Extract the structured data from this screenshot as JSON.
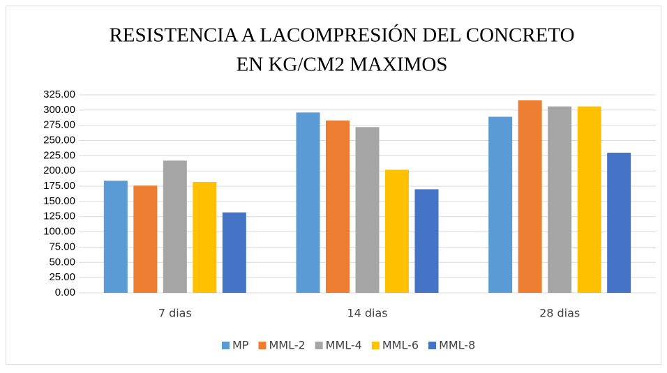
{
  "chart_data": {
    "type": "bar",
    "title": [
      "RESISTENCIA A LACOMPRESIÓN DEL CONCRETO",
      "EN KG/CM2 MAXIMOS"
    ],
    "categories": [
      "7 dias",
      "14 dias",
      "28 dias"
    ],
    "series": [
      {
        "name": "MP",
        "color": "#5b9bd5",
        "values": [
          184,
          296,
          289
        ]
      },
      {
        "name": "MML-2",
        "color": "#ed7d31",
        "values": [
          176,
          283,
          316
        ]
      },
      {
        "name": "MML-4",
        "color": "#a5a5a5",
        "values": [
          217,
          272,
          306
        ]
      },
      {
        "name": "MML-6",
        "color": "#ffc000",
        "values": [
          182,
          202,
          306
        ]
      },
      {
        "name": "MML-8",
        "color": "#4472c4",
        "values": [
          132,
          170,
          230
        ]
      }
    ],
    "ylim": [
      0,
      325
    ],
    "yticks": [
      {
        "value": 0,
        "label": "0.00"
      },
      {
        "value": 25,
        "label": "25.00"
      },
      {
        "value": 50,
        "label": "50.00"
      },
      {
        "value": 75,
        "label": "75.00"
      },
      {
        "value": 100,
        "label": "100.00"
      },
      {
        "value": 125,
        "label": "125.00"
      },
      {
        "value": 150,
        "label": "150.00"
      },
      {
        "value": 175,
        "label": "175.00"
      },
      {
        "value": 200,
        "label": "200.00"
      },
      {
        "value": 225,
        "label": "225.00"
      },
      {
        "value": 250,
        "label": "250.00"
      },
      {
        "value": 275,
        "label": "275.00"
      },
      {
        "value": 300,
        "label": "300.00"
      },
      {
        "value": 325,
        "label": "325.00"
      }
    ],
    "grid": true
  }
}
